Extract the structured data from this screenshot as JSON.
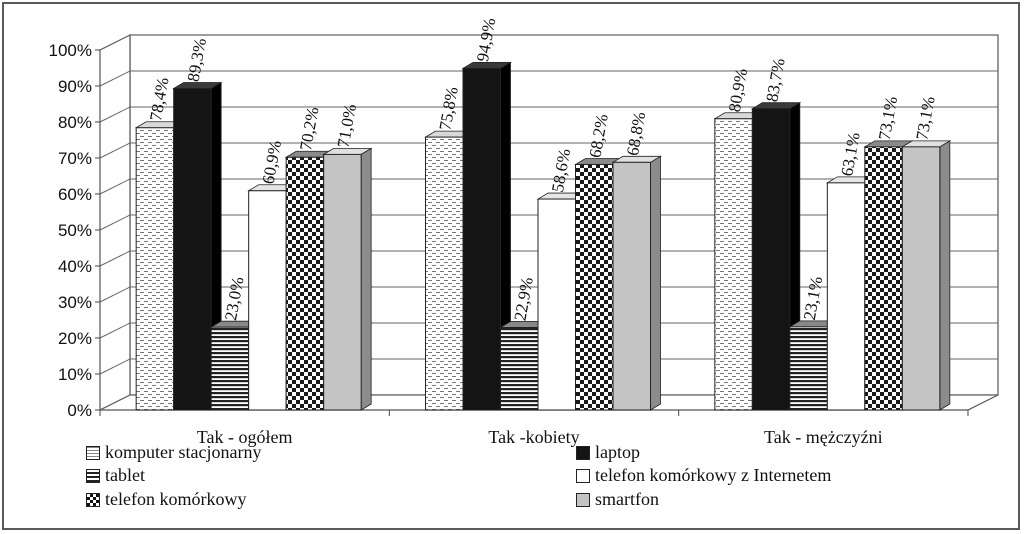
{
  "chart_data": {
    "type": "bar",
    "categories": [
      "Tak - ogółem",
      "Tak -kobiety",
      "Tak - mężczyźni"
    ],
    "series": [
      {
        "name": "komputer stacjonarny",
        "values": [
          78.4,
          75.8,
          80.9
        ],
        "labels": [
          "78,4%",
          "75,8%",
          "80,9%"
        ],
        "pattern": "dashed-light"
      },
      {
        "name": "laptop",
        "values": [
          89.3,
          94.9,
          83.7
        ],
        "labels": [
          "89,3%",
          "94,9%",
          "83,7%"
        ],
        "pattern": "solid-black"
      },
      {
        "name": "tablet",
        "values": [
          23.0,
          22.9,
          23.1
        ],
        "labels": [
          "23,0%",
          "22,9%",
          "23,1%"
        ],
        "pattern": "horizontal-stripes"
      },
      {
        "name": "telefon komórkowy z Internetem",
        "values": [
          60.9,
          58.6,
          63.1
        ],
        "labels": [
          "60,9%",
          "58,6%",
          "63,1%"
        ],
        "pattern": "white"
      },
      {
        "name": "telefon komórkowy",
        "values": [
          70.2,
          68.2,
          73.1
        ],
        "labels": [
          "70,2%",
          "68,2%",
          "73,1%"
        ],
        "pattern": "checker"
      },
      {
        "name": "smartfon",
        "values": [
          71.0,
          68.8,
          73.1
        ],
        "labels": [
          "71,0%",
          "68,8%",
          "73,1%"
        ],
        "pattern": "light-gray"
      }
    ],
    "y_ticks": [
      "0%",
      "10%",
      "20%",
      "30%",
      "40%",
      "50%",
      "60%",
      "70%",
      "80%",
      "90%",
      "100%"
    ],
    "ylim": [
      0,
      100
    ],
    "grid": true,
    "legend_position": "bottom",
    "style": "3d-clustered-column"
  }
}
